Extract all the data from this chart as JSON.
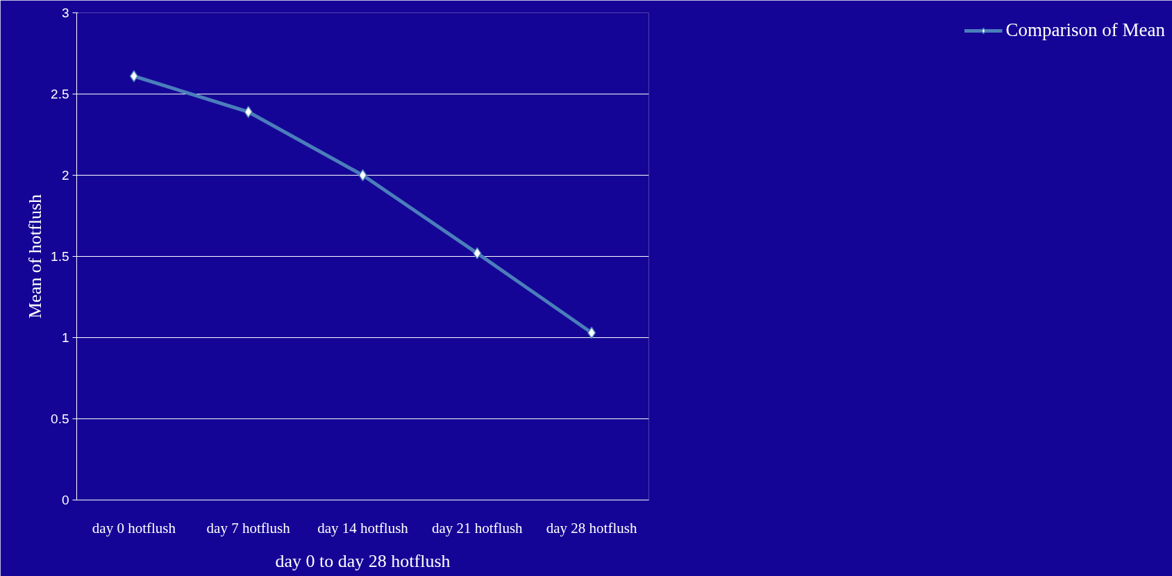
{
  "chart_data": {
    "type": "line",
    "xlabel": "day 0 to day 28 hotflush",
    "ylabel": "Mean of hotflush",
    "categories": [
      "day 0 hotflush",
      "day 7 hotflush",
      "day 14 hotflush",
      "day 21 hotflush",
      "day 28 hotflush"
    ],
    "series": [
      {
        "name": "Comparison of Mean",
        "color": "#4a7ebb",
        "values": [
          2.61,
          2.39,
          2.0,
          1.52,
          1.03
        ]
      }
    ],
    "ylim": [
      0,
      3
    ],
    "yticks": [
      0,
      0.5,
      1,
      1.5,
      2,
      2.5,
      3
    ],
    "grid": "y",
    "legend": "right",
    "marker": "diamond"
  }
}
